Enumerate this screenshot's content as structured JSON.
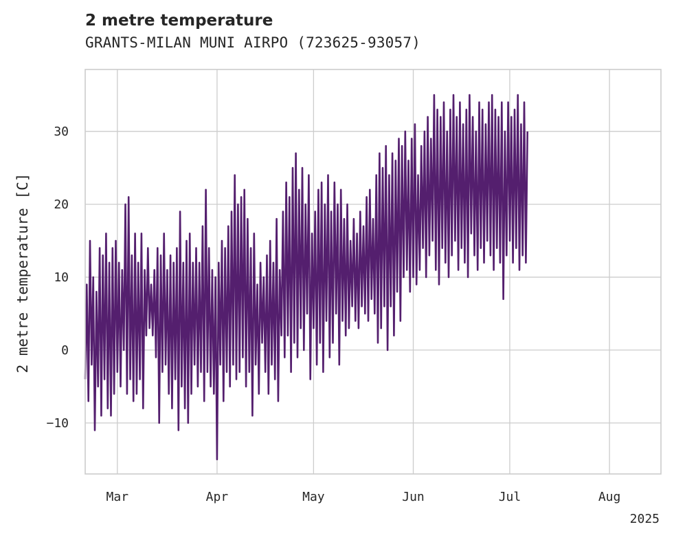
{
  "chart_data": {
    "type": "line",
    "title": "2 metre temperature",
    "subtitle": "GRANTS-MILAN MUNI AIRPO (723625-93057)",
    "ylabel": "2 metre temperature [C]",
    "xlabel": "",
    "xlim": [
      "2025-02-19",
      "2025-08-17"
    ],
    "ylim": [
      -17,
      38.5
    ],
    "grid": true,
    "x_ticks": [
      {
        "date": "2025-03-01",
        "label": "Mar"
      },
      {
        "date": "2025-04-01",
        "label": "Apr"
      },
      {
        "date": "2025-05-01",
        "label": "May"
      },
      {
        "date": "2025-06-01",
        "label": "Jun"
      },
      {
        "date": "2025-07-01",
        "label": "Jul"
      },
      {
        "date": "2025-08-01",
        "label": "Aug"
      }
    ],
    "x_offset_label": "2025",
    "y_ticks": [
      -10,
      0,
      10,
      20,
      30
    ],
    "line_color": "#541f6e",
    "series": [
      {
        "x_start": "2025-02-19",
        "interval_hours": 12,
        "values": [
          -4,
          9,
          -7,
          15,
          -2,
          10,
          -11,
          8,
          -5,
          14,
          -9,
          13,
          -4,
          16,
          -8,
          12,
          -9,
          14,
          -6,
          15,
          -3,
          12,
          -5,
          11,
          0,
          20,
          -6,
          21,
          -4,
          13,
          -7,
          16,
          -6,
          12,
          -4,
          16,
          -8,
          11,
          2,
          14,
          3,
          9,
          2,
          11,
          -1,
          14,
          -10,
          13,
          -3,
          16,
          -2,
          11,
          -6,
          13,
          -8,
          12,
          -4,
          14,
          -11,
          19,
          -5,
          12,
          -8,
          15,
          -10,
          16,
          -6,
          12,
          -2,
          14,
          -5,
          12,
          -3,
          17,
          -7,
          22,
          -3,
          14,
          -5,
          11,
          -6,
          10,
          -15,
          12,
          -2,
          15,
          -7,
          14,
          -3,
          17,
          -5,
          19,
          -2,
          24,
          -4,
          20,
          -3,
          21,
          -1,
          22,
          -5,
          18,
          -3,
          14,
          -9,
          16,
          -2,
          9,
          -6,
          12,
          1,
          10,
          -3,
          13,
          -6,
          15,
          -2,
          12,
          -4,
          18,
          -7,
          11,
          2,
          19,
          -1,
          23,
          2,
          21,
          -3,
          25,
          1,
          27,
          -1,
          22,
          3,
          25,
          0,
          20,
          5,
          24,
          -4,
          16,
          3,
          19,
          -2,
          22,
          1,
          23,
          -3,
          20,
          4,
          24,
          -1,
          19,
          1,
          23,
          5,
          20,
          -2,
          22,
          4,
          18,
          2,
          20,
          3,
          15,
          6,
          18,
          4,
          16,
          3,
          19,
          6,
          17,
          5,
          21,
          4,
          22,
          7,
          18,
          5,
          24,
          1,
          27,
          3,
          25,
          6,
          28,
          0,
          24,
          6,
          27,
          2,
          26,
          8,
          29,
          4,
          28,
          10,
          30,
          11,
          26,
          8,
          29,
          10,
          31,
          9,
          24,
          11,
          28,
          14,
          30,
          10,
          32,
          13,
          29,
          15,
          35,
          11,
          33,
          9,
          32,
          14,
          34,
          12,
          30,
          10,
          33,
          13,
          35,
          15,
          32,
          11,
          34,
          14,
          31,
          12,
          33,
          10,
          35,
          16,
          32,
          13,
          30,
          11,
          34,
          14,
          33,
          12,
          31,
          15,
          34,
          13,
          35,
          11,
          33,
          14,
          32,
          12,
          34,
          7,
          30,
          13,
          34,
          15,
          32,
          12,
          33,
          14,
          35,
          11,
          31,
          13,
          34,
          12,
          30
        ]
      }
    ]
  }
}
